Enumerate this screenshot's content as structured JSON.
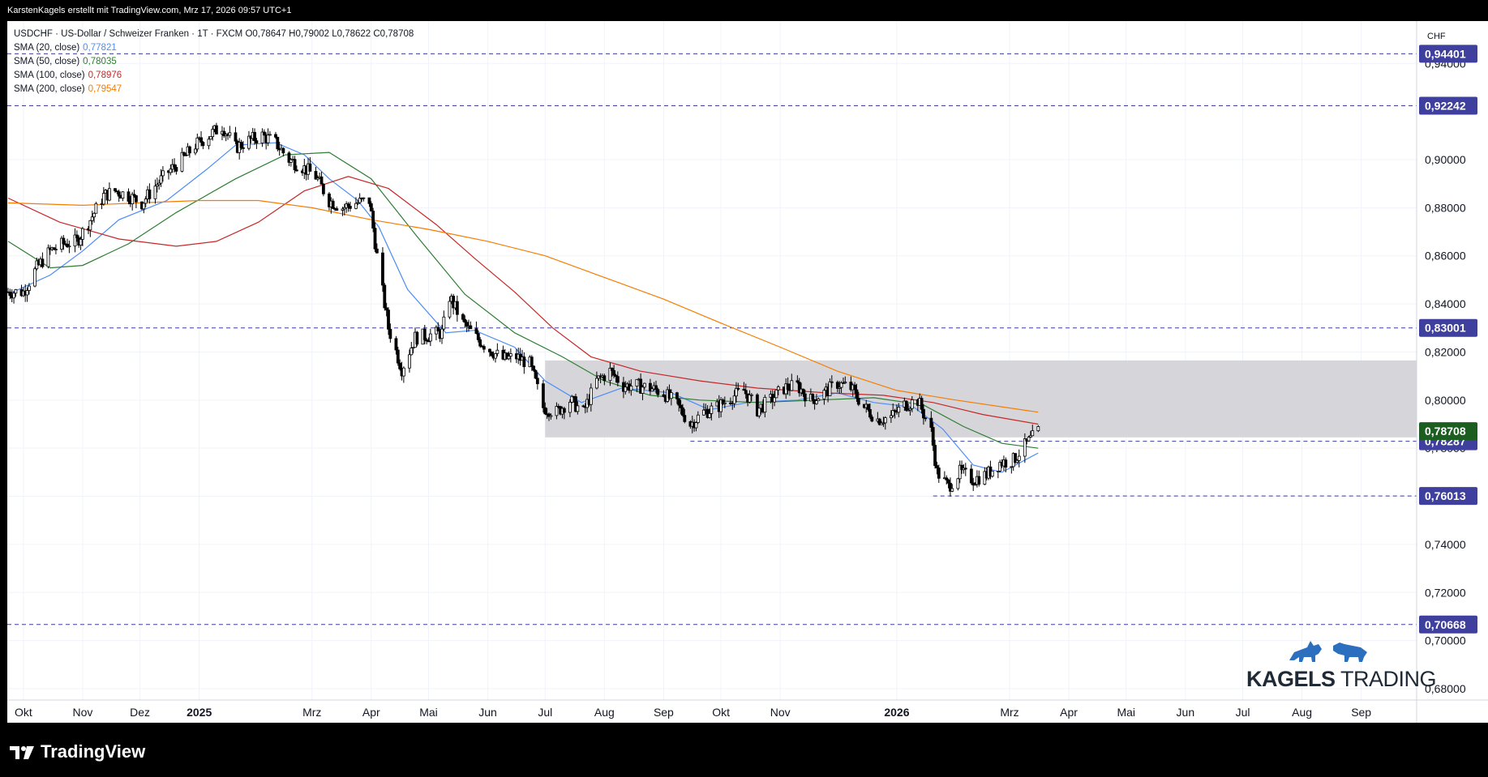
{
  "header": {
    "caption": "KarstenKagels erstellt mit TradingView.com, Mrz 17, 2026 09:57 UTC+1"
  },
  "legend": {
    "symbol_line": "USDCHF · US-Dollar / Schweizer Franken · 1T · FXCM",
    "ohlc": "O0,78647  H0,79002  L0,78622  C0,78708",
    "smas": [
      {
        "label": "SMA (20, close)",
        "value": "0,77821",
        "color": "#4c8df6"
      },
      {
        "label": "SMA (50, close)",
        "value": "0,78035",
        "color": "#2e7d32"
      },
      {
        "label": "SMA (100, close)",
        "value": "0,78976",
        "color": "#c62828"
      },
      {
        "label": "SMA (200, close)",
        "value": "0,79547",
        "color": "#f57c00"
      }
    ]
  },
  "branding": {
    "tradingview": "TradingView",
    "kagels_bold": "KAGELS",
    "kagels_light": "TRADING"
  },
  "chart_data": {
    "type": "candlestick",
    "currency": "CHF",
    "ylim": [
      0.672,
      0.952
    ],
    "y_ticks": [
      "0,68000",
      "0,70000",
      "0,72000",
      "0,74000",
      "0,76000",
      "0,78000",
      "0,80000",
      "0,82000",
      "0,84000",
      "0,86000",
      "0,88000",
      "0,90000",
      "0,94000"
    ],
    "x_ticks": [
      {
        "label": "Okt",
        "date": "2024-10-01",
        "bold": false
      },
      {
        "label": "Nov",
        "date": "2024-11-01",
        "bold": false
      },
      {
        "label": "Dez",
        "date": "2024-12-01",
        "bold": false
      },
      {
        "label": "2025",
        "date": "2025-01-01",
        "bold": true
      },
      {
        "label": "Mrz",
        "date": "2025-03-01",
        "bold": false
      },
      {
        "label": "Apr",
        "date": "2025-04-01",
        "bold": false
      },
      {
        "label": "Mai",
        "date": "2025-05-01",
        "bold": false
      },
      {
        "label": "Jun",
        "date": "2025-06-01",
        "bold": false
      },
      {
        "label": "Jul",
        "date": "2025-07-01",
        "bold": false
      },
      {
        "label": "Aug",
        "date": "2025-08-01",
        "bold": false
      },
      {
        "label": "Sep",
        "date": "2025-09-01",
        "bold": false
      },
      {
        "label": "Okt",
        "date": "2025-10-01",
        "bold": false
      },
      {
        "label": "Nov",
        "date": "2025-11-01",
        "bold": false
      },
      {
        "label": "2026",
        "date": "2026-01-01",
        "bold": true
      },
      {
        "label": "Mrz",
        "date": "2026-03-01",
        "bold": false
      },
      {
        "label": "Apr",
        "date": "2026-04-01",
        "bold": false
      },
      {
        "label": "Mai",
        "date": "2026-05-01",
        "bold": false
      },
      {
        "label": "Jun",
        "date": "2026-06-01",
        "bold": false
      },
      {
        "label": "Jul",
        "date": "2026-07-01",
        "bold": false
      },
      {
        "label": "Aug",
        "date": "2026-08-01",
        "bold": false
      },
      {
        "label": "Sep",
        "date": "2026-09-01",
        "bold": false
      }
    ],
    "horizontal_levels": [
      {
        "value": 0.94401,
        "label": "0,94401",
        "dashed": true,
        "full_width": true
      },
      {
        "value": 0.92242,
        "label": "0,92242",
        "dashed": true,
        "full_width": true
      },
      {
        "value": 0.83001,
        "label": "0,83001",
        "dashed": true,
        "full_width": true
      },
      {
        "value": 0.78287,
        "label": "0,78287",
        "dashed": true,
        "from": "2025-09-15"
      },
      {
        "value": 0.76013,
        "label": "0,76013",
        "dashed": true,
        "from": "2026-01-20"
      },
      {
        "value": 0.70668,
        "label": "0,70668",
        "dashed": true,
        "full_width": true
      }
    ],
    "current_price": {
      "value": 0.78708,
      "label": "0,78708",
      "color": "#1b5e20"
    },
    "zone": {
      "from": "2025-07-01",
      "to": "2026-09-30",
      "y_top": 0.8165,
      "y_bottom": 0.7845
    },
    "price_path": [
      [
        "2024-09-23",
        0.845
      ],
      [
        "2024-10-01",
        0.845
      ],
      [
        "2024-10-08",
        0.855
      ],
      [
        "2024-10-15",
        0.862
      ],
      [
        "2024-10-22",
        0.865
      ],
      [
        "2024-10-29",
        0.866
      ],
      [
        "2024-11-05",
        0.875
      ],
      [
        "2024-11-12",
        0.885
      ],
      [
        "2024-11-18",
        0.887
      ],
      [
        "2024-11-25",
        0.885
      ],
      [
        "2024-12-02",
        0.882
      ],
      [
        "2024-12-09",
        0.889
      ],
      [
        "2024-12-16",
        0.895
      ],
      [
        "2024-12-23",
        0.9
      ],
      [
        "2024-12-30",
        0.906
      ],
      [
        "2025-01-06",
        0.91
      ],
      [
        "2025-01-13",
        0.914
      ],
      [
        "2025-01-20",
        0.905
      ],
      [
        "2025-01-27",
        0.908
      ],
      [
        "2025-02-03",
        0.91
      ],
      [
        "2025-02-10",
        0.907
      ],
      [
        "2025-02-17",
        0.9
      ],
      [
        "2025-02-24",
        0.897
      ],
      [
        "2025-03-03",
        0.893
      ],
      [
        "2025-03-10",
        0.883
      ],
      [
        "2025-03-17",
        0.88
      ],
      [
        "2025-03-24",
        0.882
      ],
      [
        "2025-03-31",
        0.883
      ],
      [
        "2025-04-04",
        0.86
      ],
      [
        "2025-04-10",
        0.83
      ],
      [
        "2025-04-17",
        0.813
      ],
      [
        "2025-04-24",
        0.826
      ],
      [
        "2025-05-01",
        0.827
      ],
      [
        "2025-05-08",
        0.828
      ],
      [
        "2025-05-12",
        0.843
      ],
      [
        "2025-05-19",
        0.832
      ],
      [
        "2025-05-26",
        0.826
      ],
      [
        "2025-06-02",
        0.821
      ],
      [
        "2025-06-09",
        0.817
      ],
      [
        "2025-06-16",
        0.818
      ],
      [
        "2025-06-23",
        0.815
      ],
      [
        "2025-06-30",
        0.797
      ],
      [
        "2025-07-07",
        0.795
      ],
      [
        "2025-07-14",
        0.8
      ],
      [
        "2025-07-21",
        0.795
      ],
      [
        "2025-07-28",
        0.808
      ],
      [
        "2025-08-04",
        0.812
      ],
      [
        "2025-08-11",
        0.806
      ],
      [
        "2025-08-18",
        0.806
      ],
      [
        "2025-08-25",
        0.805
      ],
      [
        "2025-09-01",
        0.803
      ],
      [
        "2025-09-08",
        0.798
      ],
      [
        "2025-09-15",
        0.79
      ],
      [
        "2025-09-22",
        0.795
      ],
      [
        "2025-09-29",
        0.797
      ],
      [
        "2025-10-06",
        0.801
      ],
      [
        "2025-10-13",
        0.804
      ],
      [
        "2025-10-20",
        0.796
      ],
      [
        "2025-10-27",
        0.8
      ],
      [
        "2025-11-03",
        0.805
      ],
      [
        "2025-11-10",
        0.806
      ],
      [
        "2025-11-17",
        0.8
      ],
      [
        "2025-11-24",
        0.803
      ],
      [
        "2025-12-01",
        0.807
      ],
      [
        "2025-12-08",
        0.805
      ],
      [
        "2025-12-15",
        0.797
      ],
      [
        "2025-12-22",
        0.792
      ],
      [
        "2025-12-29",
        0.793
      ],
      [
        "2026-01-05",
        0.798
      ],
      [
        "2026-01-12",
        0.8
      ],
      [
        "2026-01-19",
        0.787
      ],
      [
        "2026-01-22",
        0.77
      ],
      [
        "2026-01-28",
        0.764
      ],
      [
        "2026-02-03",
        0.77
      ],
      [
        "2026-02-10",
        0.767
      ],
      [
        "2026-02-17",
        0.769
      ],
      [
        "2026-02-24",
        0.774
      ],
      [
        "2026-03-03",
        0.775
      ],
      [
        "2026-03-09",
        0.781
      ],
      [
        "2026-03-16",
        0.787
      ]
    ],
    "sma_paths": {
      "sma20": [
        [
          "2024-09-23",
          0.844
        ],
        [
          "2024-10-15",
          0.852
        ],
        [
          "2024-11-01",
          0.862
        ],
        [
          "2024-11-20",
          0.875
        ],
        [
          "2024-12-15",
          0.883
        ],
        [
          "2025-01-05",
          0.896
        ],
        [
          "2025-01-20",
          0.906
        ],
        [
          "2025-02-10",
          0.907
        ],
        [
          "2025-02-25",
          0.902
        ],
        [
          "2025-03-10",
          0.892
        ],
        [
          "2025-03-25",
          0.883
        ],
        [
          "2025-04-05",
          0.872
        ],
        [
          "2025-04-20",
          0.846
        ],
        [
          "2025-05-10",
          0.828
        ],
        [
          "2025-05-25",
          0.829
        ],
        [
          "2025-06-15",
          0.822
        ],
        [
          "2025-07-01",
          0.808
        ],
        [
          "2025-07-20",
          0.799
        ],
        [
          "2025-08-10",
          0.805
        ],
        [
          "2025-09-05",
          0.803
        ],
        [
          "2025-09-25",
          0.796
        ],
        [
          "2025-10-15",
          0.799
        ],
        [
          "2025-11-10",
          0.8
        ],
        [
          "2025-12-01",
          0.803
        ],
        [
          "2025-12-20",
          0.799
        ],
        [
          "2026-01-10",
          0.797
        ],
        [
          "2026-01-25",
          0.788
        ],
        [
          "2026-02-10",
          0.773
        ],
        [
          "2026-02-25",
          0.77
        ],
        [
          "2026-03-16",
          0.778
        ]
      ],
      "sma50": [
        [
          "2024-09-23",
          0.866
        ],
        [
          "2024-10-15",
          0.855
        ],
        [
          "2024-11-01",
          0.856
        ],
        [
          "2024-11-25",
          0.865
        ],
        [
          "2024-12-20",
          0.878
        ],
        [
          "2025-01-20",
          0.892
        ],
        [
          "2025-02-15",
          0.902
        ],
        [
          "2025-03-10",
          0.903
        ],
        [
          "2025-04-01",
          0.892
        ],
        [
          "2025-04-25",
          0.868
        ],
        [
          "2025-05-20",
          0.844
        ],
        [
          "2025-06-15",
          0.828
        ],
        [
          "2025-07-10",
          0.818
        ],
        [
          "2025-08-01",
          0.808
        ],
        [
          "2025-08-25",
          0.802
        ],
        [
          "2025-09-20",
          0.8
        ],
        [
          "2025-10-20",
          0.799
        ],
        [
          "2025-11-20",
          0.8
        ],
        [
          "2025-12-20",
          0.801
        ],
        [
          "2026-01-15",
          0.798
        ],
        [
          "2026-02-05",
          0.789
        ],
        [
          "2026-02-25",
          0.782
        ],
        [
          "2026-03-16",
          0.78
        ]
      ],
      "sma100": [
        [
          "2024-09-23",
          0.884
        ],
        [
          "2024-10-20",
          0.874
        ],
        [
          "2024-11-20",
          0.867
        ],
        [
          "2024-12-20",
          0.864
        ],
        [
          "2025-01-10",
          0.866
        ],
        [
          "2025-02-01",
          0.874
        ],
        [
          "2025-02-25",
          0.887
        ],
        [
          "2025-03-20",
          0.893
        ],
        [
          "2025-04-10",
          0.888
        ],
        [
          "2025-05-05",
          0.873
        ],
        [
          "2025-05-25",
          0.859
        ],
        [
          "2025-06-15",
          0.845
        ],
        [
          "2025-07-05",
          0.83
        ],
        [
          "2025-07-25",
          0.818
        ],
        [
          "2025-08-20",
          0.812
        ],
        [
          "2025-09-20",
          0.808
        ],
        [
          "2025-10-20",
          0.805
        ],
        [
          "2025-11-25",
          0.803
        ],
        [
          "2025-12-25",
          0.802
        ],
        [
          "2026-01-20",
          0.799
        ],
        [
          "2026-02-15",
          0.794
        ],
        [
          "2026-03-16",
          0.79
        ]
      ],
      "sma200": [
        [
          "2024-09-23",
          0.882
        ],
        [
          "2024-11-01",
          0.881
        ],
        [
          "2024-12-01",
          0.882
        ],
        [
          "2025-01-01",
          0.883
        ],
        [
          "2025-02-01",
          0.883
        ],
        [
          "2025-03-01",
          0.88
        ],
        [
          "2025-04-01",
          0.875
        ],
        [
          "2025-05-01",
          0.871
        ],
        [
          "2025-06-01",
          0.866
        ],
        [
          "2025-07-01",
          0.86
        ],
        [
          "2025-08-01",
          0.851
        ],
        [
          "2025-09-01",
          0.842
        ],
        [
          "2025-10-01",
          0.832
        ],
        [
          "2025-11-01",
          0.822
        ],
        [
          "2025-12-01",
          0.812
        ],
        [
          "2026-01-01",
          0.804
        ],
        [
          "2026-02-01",
          0.8
        ],
        [
          "2026-03-16",
          0.795
        ]
      ]
    }
  }
}
